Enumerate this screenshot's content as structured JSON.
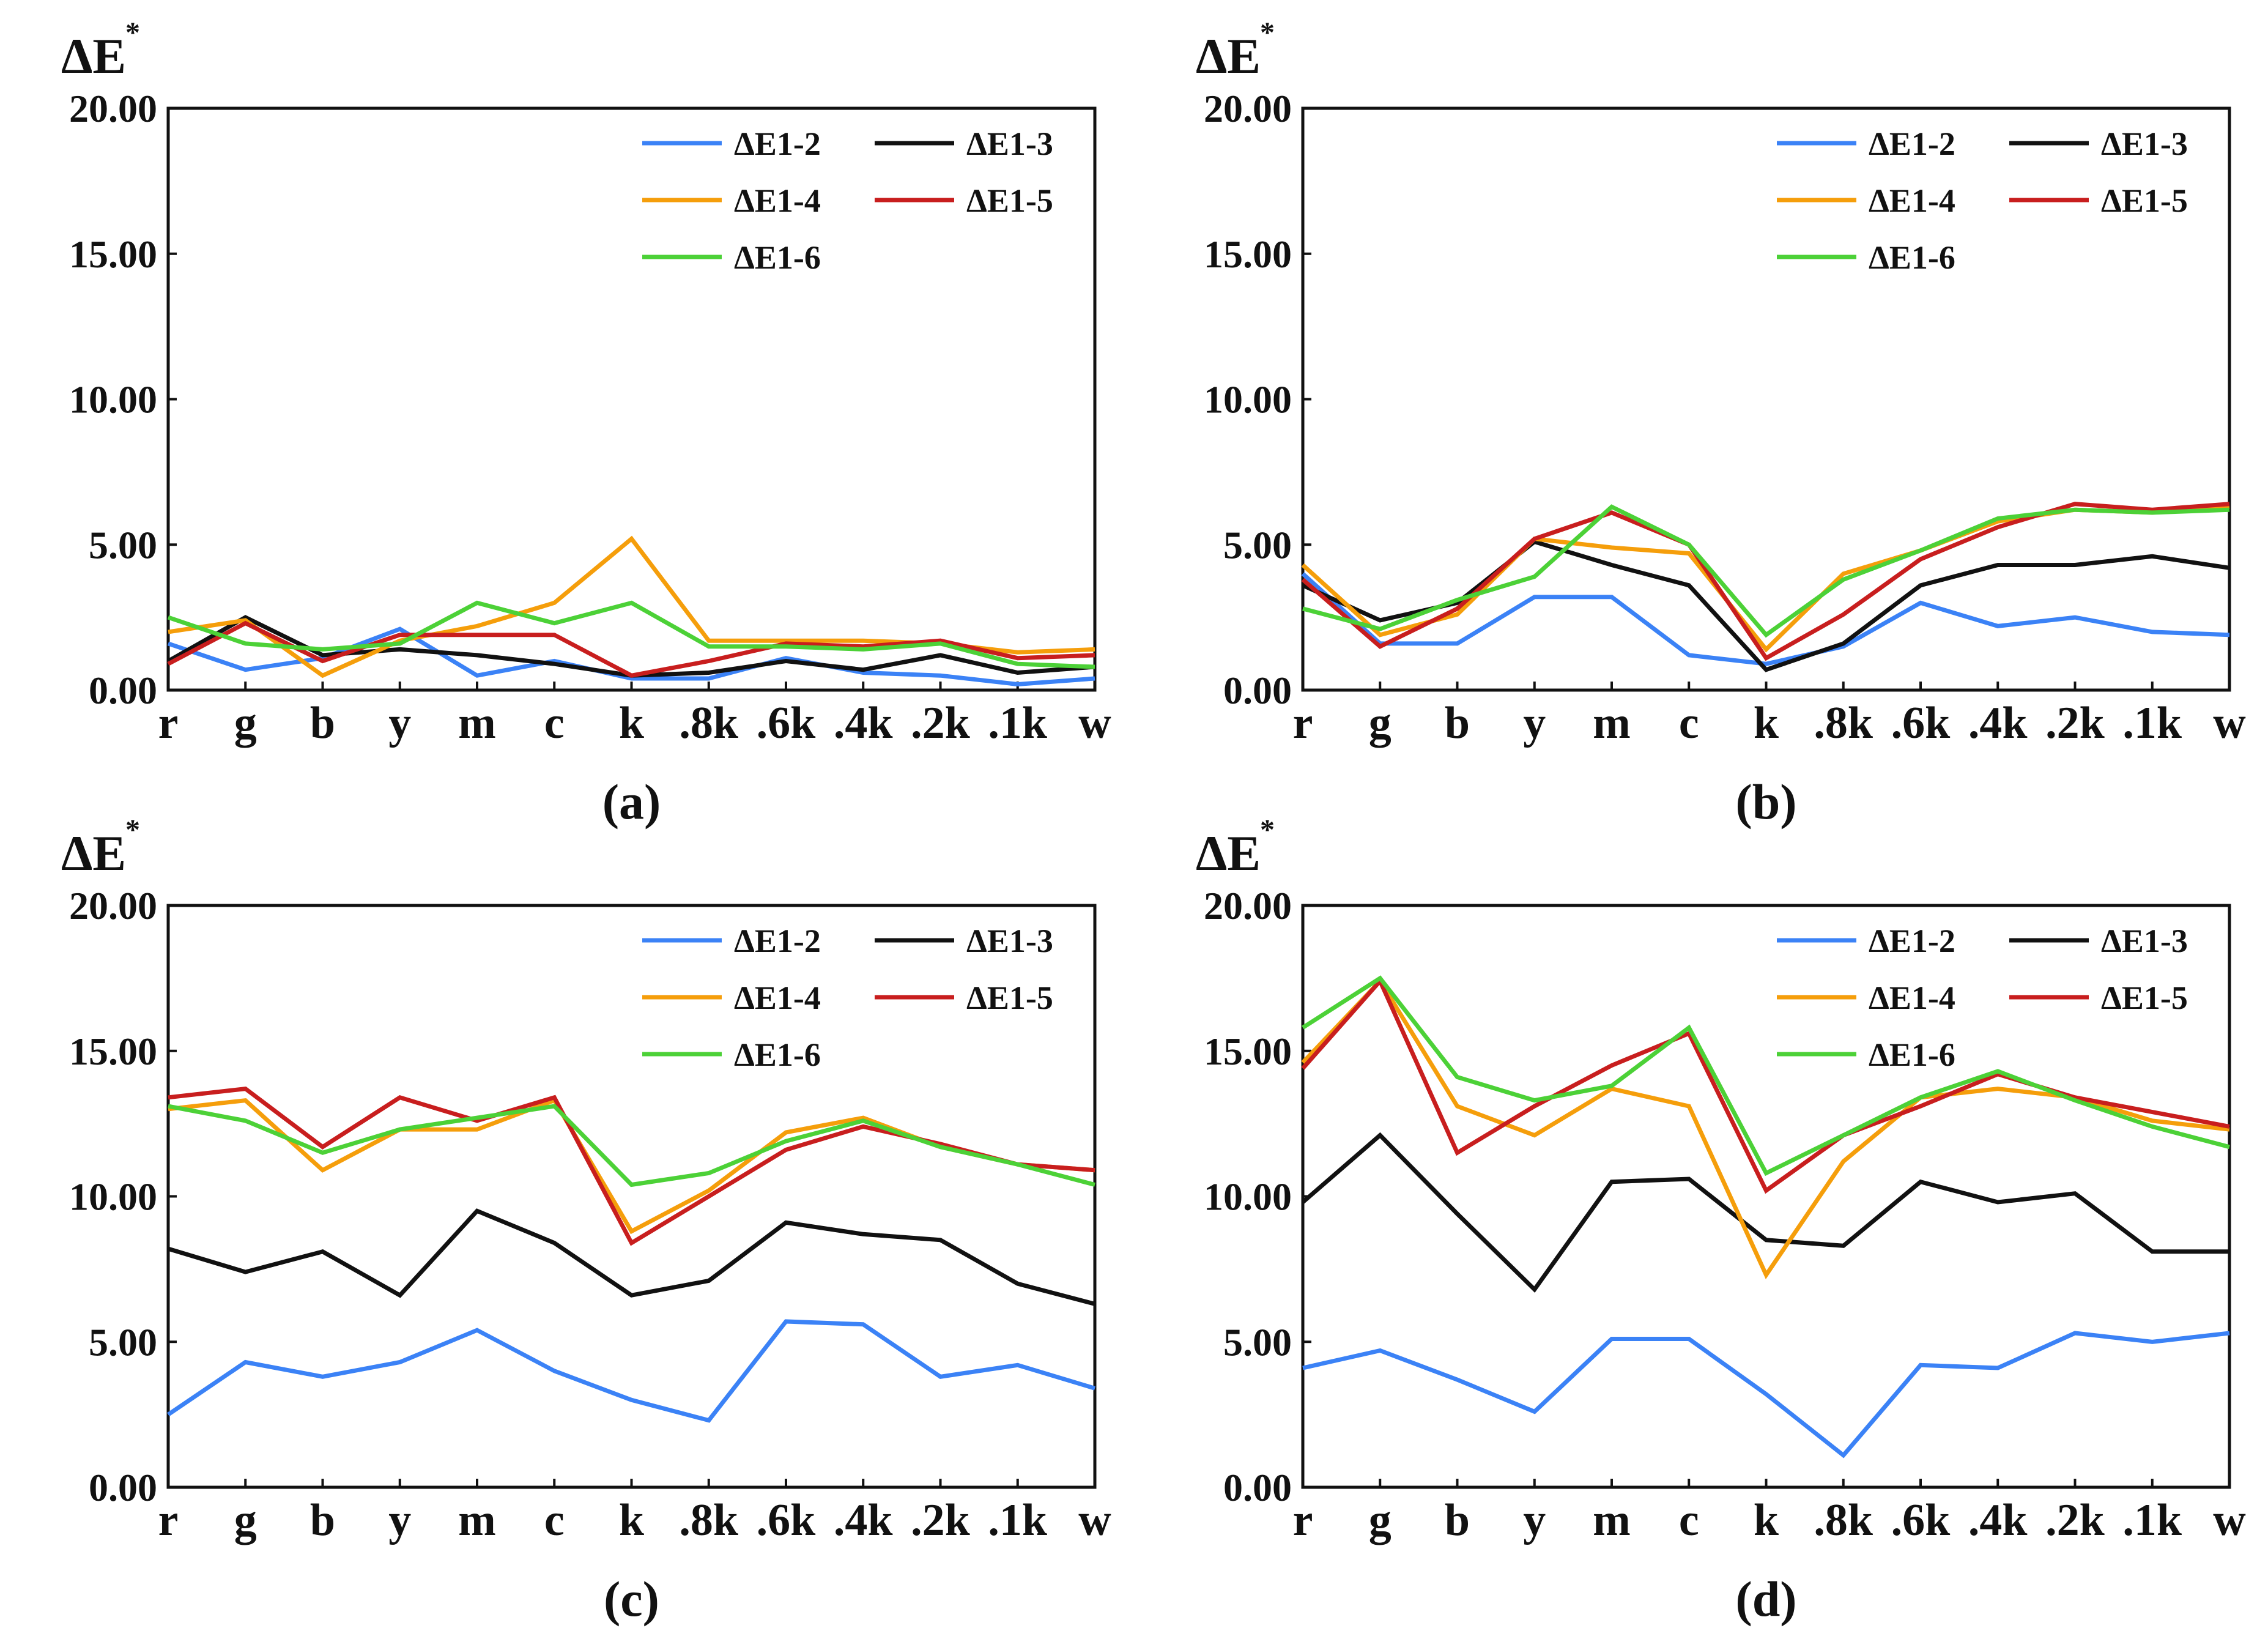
{
  "figure": {
    "background": "#ffffff",
    "series_colors": {
      "ΔE1-2": "#3b82f6",
      "ΔE1-3": "#111111",
      "ΔE1-4": "#f59e0b",
      "ΔE1-5": "#c81e1e",
      "ΔE1-6": "#4cd137"
    }
  },
  "chart_data": [
    {
      "type": "line",
      "caption": "(a)",
      "ylabel": "ΔE",
      "ylabel_sup": "*",
      "xlabel": "",
      "ylim": [
        0,
        20
      ],
      "yticks": [
        "0.00",
        "5.00",
        "10.00",
        "15.00",
        "20.00"
      ],
      "categories": [
        "r",
        "g",
        "b",
        "y",
        "m",
        "c",
        "k",
        ".8k",
        ".6k",
        ".4k",
        ".2k",
        ".1k",
        "w"
      ],
      "legend": "top-right",
      "grid": false,
      "series": [
        {
          "name": "ΔE1-2",
          "values": [
            1.6,
            0.7,
            1.1,
            2.1,
            0.5,
            1.0,
            0.4,
            0.4,
            1.1,
            0.6,
            0.5,
            0.2,
            0.4
          ]
        },
        {
          "name": "ΔE1-3",
          "values": [
            1.0,
            2.5,
            1.2,
            1.4,
            1.2,
            0.9,
            0.5,
            0.6,
            1.0,
            0.7,
            1.2,
            0.6,
            0.8
          ]
        },
        {
          "name": "ΔE1-4",
          "values": [
            2.0,
            2.4,
            0.5,
            1.7,
            2.2,
            3.0,
            5.2,
            1.7,
            1.7,
            1.7,
            1.6,
            1.3,
            1.4
          ]
        },
        {
          "name": "ΔE1-5",
          "values": [
            0.9,
            2.3,
            1.0,
            1.9,
            1.9,
            1.9,
            0.5,
            1.0,
            1.6,
            1.5,
            1.7,
            1.1,
            1.2
          ]
        },
        {
          "name": "ΔE1-6",
          "values": [
            2.5,
            1.6,
            1.4,
            1.6,
            3.0,
            2.3,
            3.0,
            1.5,
            1.5,
            1.4,
            1.6,
            0.9,
            0.8
          ]
        }
      ]
    },
    {
      "type": "line",
      "caption": "(b)",
      "ylabel": "ΔE",
      "ylabel_sup": "*",
      "xlabel": "",
      "ylim": [
        0,
        20
      ],
      "yticks": [
        "0.00",
        "5.00",
        "10.00",
        "15.00",
        "20.00"
      ],
      "categories": [
        "r",
        "g",
        "b",
        "y",
        "m",
        "c",
        "k",
        ".8k",
        ".6k",
        ".4k",
        ".2k",
        ".1k",
        "w"
      ],
      "legend": "top-right",
      "grid": false,
      "series": [
        {
          "name": "ΔE1-2",
          "values": [
            4.0,
            1.6,
            1.6,
            3.2,
            3.2,
            1.2,
            0.9,
            1.5,
            3.0,
            2.2,
            2.5,
            2.0,
            1.9
          ]
        },
        {
          "name": "ΔE1-3",
          "values": [
            3.6,
            2.4,
            3.0,
            5.1,
            4.3,
            3.6,
            0.7,
            1.6,
            3.6,
            4.3,
            4.3,
            4.6,
            4.2
          ]
        },
        {
          "name": "ΔE1-4",
          "values": [
            4.3,
            1.9,
            2.6,
            5.2,
            4.9,
            4.7,
            1.4,
            4.0,
            4.8,
            5.8,
            6.2,
            6.1,
            6.3
          ]
        },
        {
          "name": "ΔE1-5",
          "values": [
            3.8,
            1.5,
            2.8,
            5.2,
            6.1,
            5.0,
            1.1,
            2.6,
            4.5,
            5.6,
            6.4,
            6.2,
            6.4
          ]
        },
        {
          "name": "ΔE1-6",
          "values": [
            2.8,
            2.1,
            3.1,
            3.9,
            6.3,
            5.0,
            1.9,
            3.8,
            4.8,
            5.9,
            6.2,
            6.1,
            6.2
          ]
        }
      ]
    },
    {
      "type": "line",
      "caption": "(c)",
      "ylabel": "ΔE",
      "ylabel_sup": "*",
      "xlabel": "",
      "ylim": [
        0,
        20
      ],
      "yticks": [
        "0.00",
        "5.00",
        "10.00",
        "15.00",
        "20.00"
      ],
      "categories": [
        "r",
        "g",
        "b",
        "y",
        "m",
        "c",
        "k",
        ".8k",
        ".6k",
        ".4k",
        ".2k",
        ".1k",
        "w"
      ],
      "legend": "top-right",
      "grid": false,
      "series": [
        {
          "name": "ΔE1-2",
          "values": [
            2.5,
            4.3,
            3.8,
            4.3,
            5.4,
            4.0,
            3.0,
            2.3,
            5.7,
            5.6,
            3.8,
            4.2,
            3.4
          ]
        },
        {
          "name": "ΔE1-3",
          "values": [
            8.2,
            7.4,
            8.1,
            6.6,
            9.5,
            8.4,
            6.6,
            7.1,
            9.1,
            8.7,
            8.5,
            7.0,
            6.3
          ]
        },
        {
          "name": "ΔE1-4",
          "values": [
            13.0,
            13.3,
            10.9,
            12.3,
            12.3,
            13.3,
            8.8,
            10.2,
            12.2,
            12.7,
            11.7,
            11.1,
            10.9
          ]
        },
        {
          "name": "ΔE1-5",
          "values": [
            13.4,
            13.7,
            11.7,
            13.4,
            12.6,
            13.4,
            8.4,
            10.0,
            11.6,
            12.4,
            11.8,
            11.1,
            10.9
          ]
        },
        {
          "name": "ΔE1-6",
          "values": [
            13.1,
            12.6,
            11.5,
            12.3,
            12.7,
            13.1,
            10.4,
            10.8,
            11.9,
            12.6,
            11.7,
            11.1,
            10.4
          ]
        }
      ]
    },
    {
      "type": "line",
      "caption": "(d)",
      "ylabel": "ΔE",
      "ylabel_sup": "*",
      "xlabel": "",
      "ylim": [
        0,
        20
      ],
      "yticks": [
        "0.00",
        "5.00",
        "10.00",
        "15.00",
        "20.00"
      ],
      "categories": [
        "r",
        "g",
        "b",
        "y",
        "m",
        "c",
        "k",
        ".8k",
        ".6k",
        ".4k",
        ".2k",
        ".1k",
        "w"
      ],
      "legend": "top-right",
      "grid": false,
      "series": [
        {
          "name": "ΔE1-2",
          "values": [
            4.1,
            4.7,
            3.7,
            2.6,
            5.1,
            5.1,
            3.2,
            1.1,
            4.2,
            4.1,
            5.3,
            5.0,
            5.3
          ]
        },
        {
          "name": "ΔE1-3",
          "values": [
            9.8,
            12.1,
            9.4,
            6.8,
            10.5,
            10.6,
            8.5,
            8.3,
            10.5,
            9.8,
            10.1,
            8.1,
            8.1
          ]
        },
        {
          "name": "ΔE1-4",
          "values": [
            14.6,
            17.4,
            13.1,
            12.1,
            13.7,
            13.1,
            7.3,
            11.2,
            13.4,
            13.7,
            13.4,
            12.6,
            12.3
          ]
        },
        {
          "name": "ΔE1-5",
          "values": [
            14.4,
            17.4,
            11.5,
            13.1,
            14.5,
            15.6,
            10.2,
            12.1,
            13.1,
            14.2,
            13.4,
            12.9,
            12.4
          ]
        },
        {
          "name": "ΔE1-6",
          "values": [
            15.8,
            17.5,
            14.1,
            13.3,
            13.8,
            15.8,
            10.8,
            12.1,
            13.4,
            14.3,
            13.3,
            12.4,
            11.7
          ]
        }
      ]
    }
  ]
}
